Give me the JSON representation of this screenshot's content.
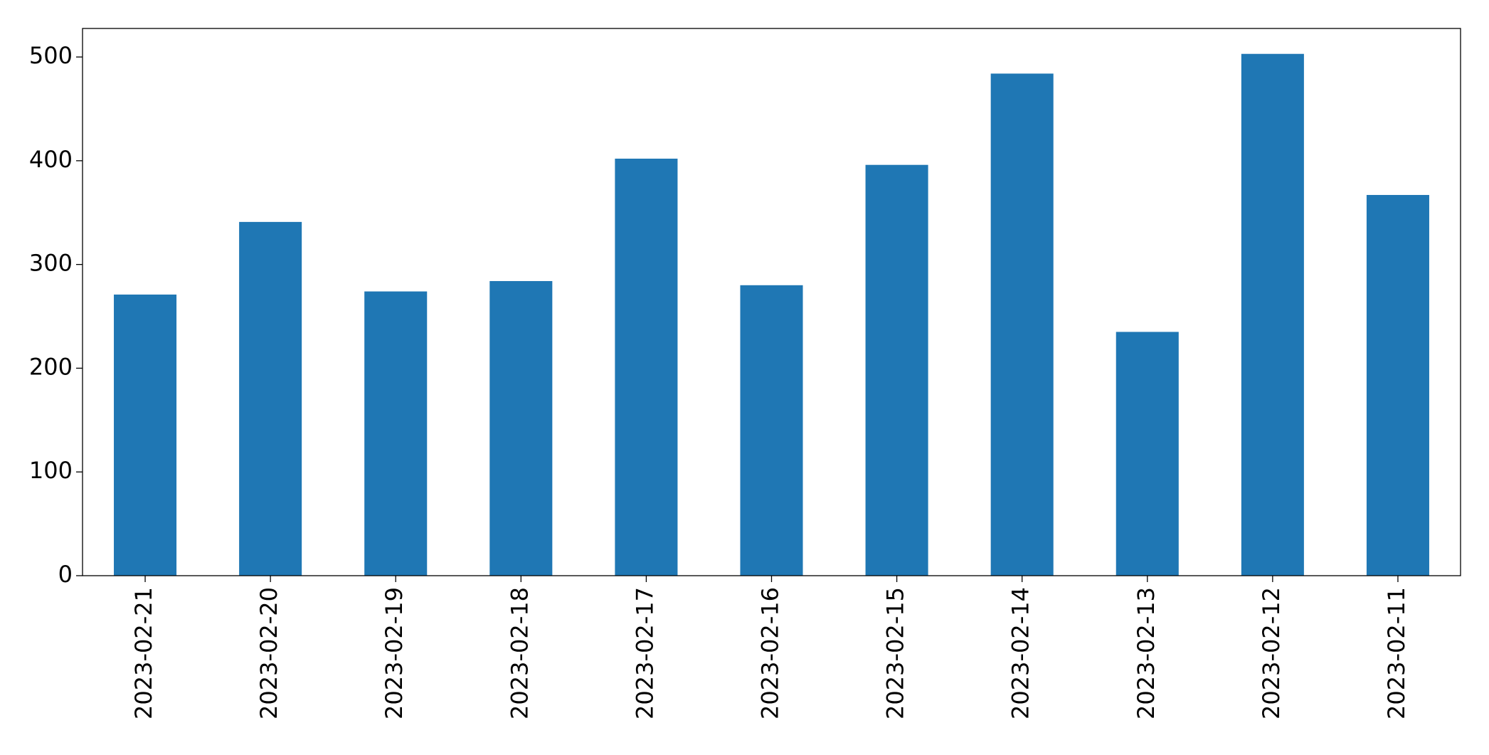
{
  "chart_data": {
    "type": "bar",
    "categories": [
      "2023-02-21",
      "2023-02-20",
      "2023-02-19",
      "2023-02-18",
      "2023-02-17",
      "2023-02-16",
      "2023-02-15",
      "2023-02-14",
      "2023-02-13",
      "2023-02-12",
      "2023-02-11"
    ],
    "values": [
      271,
      341,
      274,
      284,
      402,
      280,
      396,
      484,
      235,
      503,
      367
    ],
    "color": "#1f77b4",
    "ylim": [
      0,
      527.5
    ],
    "yticks": [
      0,
      100,
      200,
      300,
      400,
      500
    ],
    "grid": false
  }
}
